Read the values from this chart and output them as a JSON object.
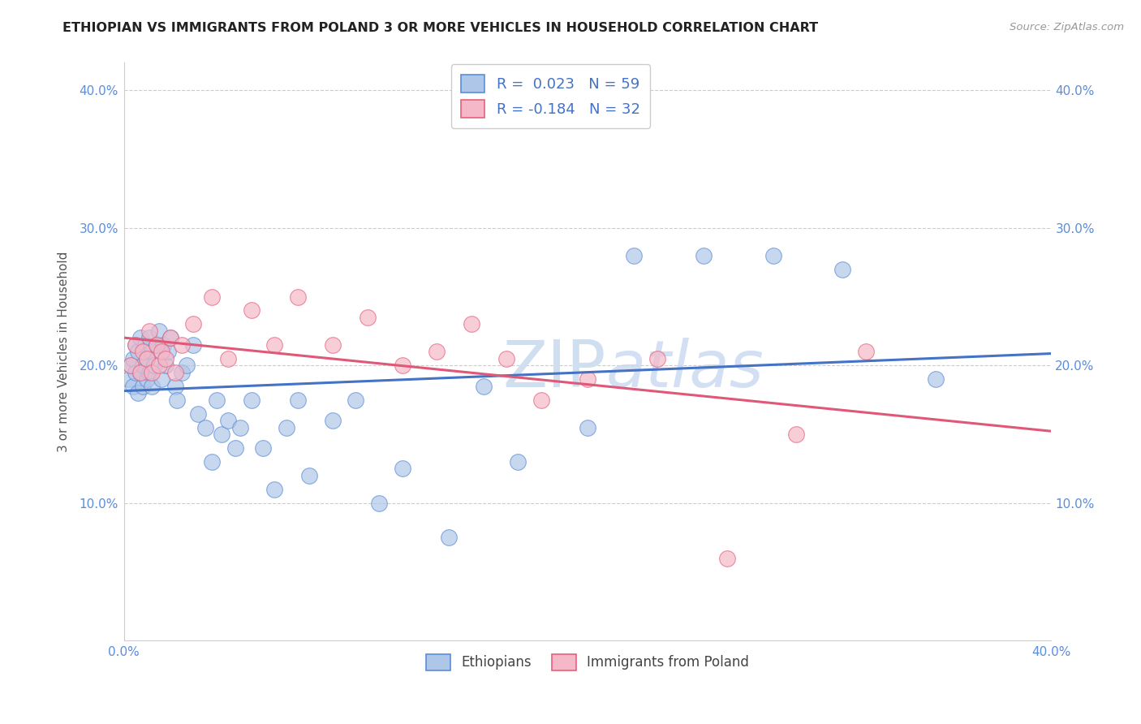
{
  "title": "ETHIOPIAN VS IMMIGRANTS FROM POLAND 3 OR MORE VEHICLES IN HOUSEHOLD CORRELATION CHART",
  "source": "Source: ZipAtlas.com",
  "ylabel": "3 or more Vehicles in Household",
  "xlim": [
    0.0,
    0.4
  ],
  "ylim": [
    0.0,
    0.42
  ],
  "yticks": [
    0.0,
    0.1,
    0.2,
    0.3,
    0.4
  ],
  "xticks": [
    0.0,
    0.05,
    0.1,
    0.15,
    0.2,
    0.25,
    0.3,
    0.35,
    0.4
  ],
  "legend_labels": [
    "Ethiopians",
    "Immigrants from Poland"
  ],
  "blue_R": 0.023,
  "blue_N": 59,
  "pink_R": -0.184,
  "pink_N": 32,
  "blue_color": "#aec6e8",
  "pink_color": "#f4b8c8",
  "blue_edge_color": "#5b8dd9",
  "pink_edge_color": "#e8607a",
  "blue_line_color": "#4472c4",
  "pink_line_color": "#e05878",
  "watermark_color": "#d0dff0",
  "blue_x": [
    0.002,
    0.003,
    0.004,
    0.004,
    0.005,
    0.005,
    0.006,
    0.006,
    0.007,
    0.007,
    0.008,
    0.008,
    0.009,
    0.01,
    0.01,
    0.011,
    0.011,
    0.012,
    0.012,
    0.013,
    0.014,
    0.015,
    0.016,
    0.017,
    0.018,
    0.019,
    0.02,
    0.022,
    0.023,
    0.025,
    0.027,
    0.03,
    0.032,
    0.035,
    0.038,
    0.04,
    0.042,
    0.045,
    0.048,
    0.05,
    0.055,
    0.06,
    0.065,
    0.07,
    0.075,
    0.08,
    0.09,
    0.1,
    0.11,
    0.12,
    0.14,
    0.155,
    0.17,
    0.2,
    0.22,
    0.25,
    0.28,
    0.31,
    0.35
  ],
  "blue_y": [
    0.19,
    0.2,
    0.185,
    0.205,
    0.195,
    0.215,
    0.18,
    0.21,
    0.195,
    0.22,
    0.185,
    0.2,
    0.215,
    0.19,
    0.205,
    0.195,
    0.22,
    0.185,
    0.21,
    0.2,
    0.215,
    0.225,
    0.19,
    0.215,
    0.2,
    0.21,
    0.22,
    0.185,
    0.175,
    0.195,
    0.2,
    0.215,
    0.165,
    0.155,
    0.13,
    0.175,
    0.15,
    0.16,
    0.14,
    0.155,
    0.175,
    0.14,
    0.11,
    0.155,
    0.175,
    0.12,
    0.16,
    0.175,
    0.1,
    0.125,
    0.075,
    0.185,
    0.13,
    0.155,
    0.28,
    0.28,
    0.28,
    0.27,
    0.19
  ],
  "pink_x": [
    0.003,
    0.005,
    0.007,
    0.008,
    0.01,
    0.011,
    0.012,
    0.014,
    0.015,
    0.016,
    0.018,
    0.02,
    0.022,
    0.025,
    0.03,
    0.038,
    0.045,
    0.055,
    0.065,
    0.075,
    0.09,
    0.105,
    0.12,
    0.135,
    0.15,
    0.165,
    0.18,
    0.2,
    0.23,
    0.26,
    0.29,
    0.32
  ],
  "pink_y": [
    0.2,
    0.215,
    0.195,
    0.21,
    0.205,
    0.225,
    0.195,
    0.215,
    0.2,
    0.21,
    0.205,
    0.22,
    0.195,
    0.215,
    0.23,
    0.25,
    0.205,
    0.24,
    0.215,
    0.25,
    0.215,
    0.235,
    0.2,
    0.21,
    0.23,
    0.205,
    0.175,
    0.19,
    0.205,
    0.06,
    0.15,
    0.21
  ]
}
